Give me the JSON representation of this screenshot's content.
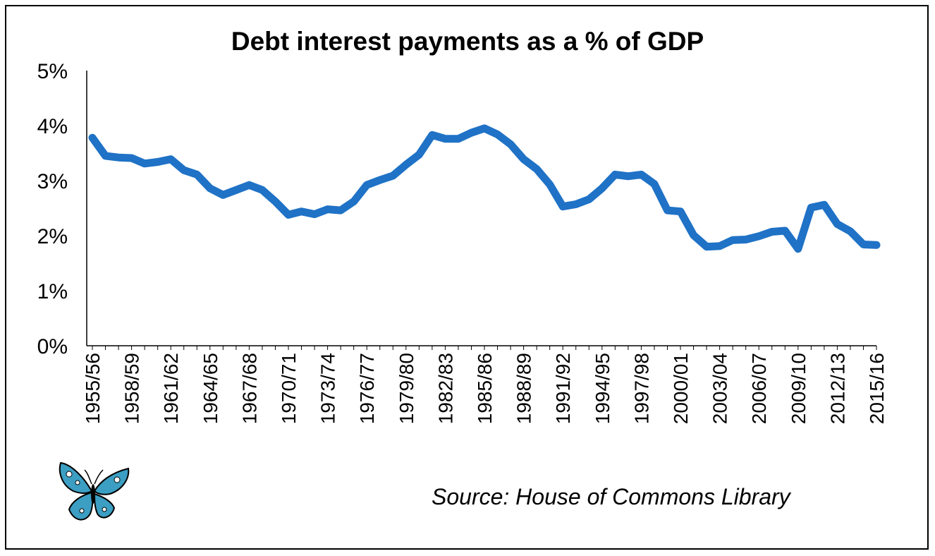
{
  "source": "Source: House of Commons Library",
  "logo": {
    "icon": "butterfly-logo-icon",
    "color": "#3b9ec2"
  },
  "chart_data": {
    "type": "line",
    "title": "Debt interest payments as a % of GDP",
    "xlabel": "",
    "ylabel": "",
    "ylim": [
      0,
      5
    ],
    "yticks": [
      "0%",
      "1%",
      "2%",
      "3%",
      "4%",
      "5%"
    ],
    "grid": false,
    "line_color": "#1f72c6",
    "x": [
      "1955/56",
      "1956/57",
      "1957/58",
      "1958/59",
      "1959/60",
      "1960/61",
      "1961/62",
      "1962/63",
      "1963/64",
      "1964/65",
      "1965/66",
      "1966/67",
      "1967/68",
      "1968/69",
      "1969/70",
      "1970/71",
      "1971/72",
      "1972/73",
      "1973/74",
      "1974/75",
      "1975/76",
      "1976/77",
      "1977/78",
      "1978/79",
      "1979/80",
      "1980/81",
      "1981/82",
      "1982/83",
      "1983/84",
      "1984/85",
      "1985/86",
      "1986/87",
      "1987/88",
      "1988/89",
      "1989/90",
      "1990/91",
      "1991/92",
      "1992/93",
      "1993/94",
      "1994/95",
      "1995/96",
      "1996/97",
      "1997/98",
      "1998/99",
      "1999/00",
      "2000/01",
      "2001/02",
      "2002/03",
      "2003/04",
      "2004/05",
      "2005/06",
      "2006/07",
      "2007/08",
      "2008/09",
      "2009/10",
      "2010/11",
      "2011/12",
      "2012/13",
      "2013/14",
      "2014/15",
      "2015/16"
    ],
    "xtick_labels": [
      "1955/56",
      "1958/59",
      "1961/62",
      "1964/65",
      "1967/68",
      "1970/71",
      "1973/74",
      "1976/77",
      "1979/80",
      "1982/83",
      "1985/86",
      "1988/89",
      "1991/92",
      "1994/95",
      "1997/98",
      "2000/01",
      "2003/04",
      "2006/07",
      "2009/10",
      "2012/13",
      "2015/16"
    ],
    "series": [
      {
        "values": [
          3.78,
          3.45,
          3.42,
          3.41,
          3.31,
          3.34,
          3.39,
          3.19,
          3.11,
          2.86,
          2.74,
          2.83,
          2.92,
          2.83,
          2.62,
          2.38,
          2.44,
          2.39,
          2.48,
          2.46,
          2.62,
          2.92,
          3.01,
          3.09,
          3.29,
          3.47,
          3.83,
          3.76,
          3.76,
          3.87,
          3.95,
          3.84,
          3.66,
          3.39,
          3.21,
          2.93,
          2.53,
          2.57,
          2.66,
          2.86,
          3.11,
          3.08,
          3.11,
          2.94,
          2.46,
          2.44,
          2.01,
          1.8,
          1.81,
          1.92,
          1.93,
          1.99,
          2.07,
          2.09,
          1.76,
          2.51,
          2.56,
          2.21,
          2.08,
          1.84,
          1.83
        ]
      }
    ]
  }
}
